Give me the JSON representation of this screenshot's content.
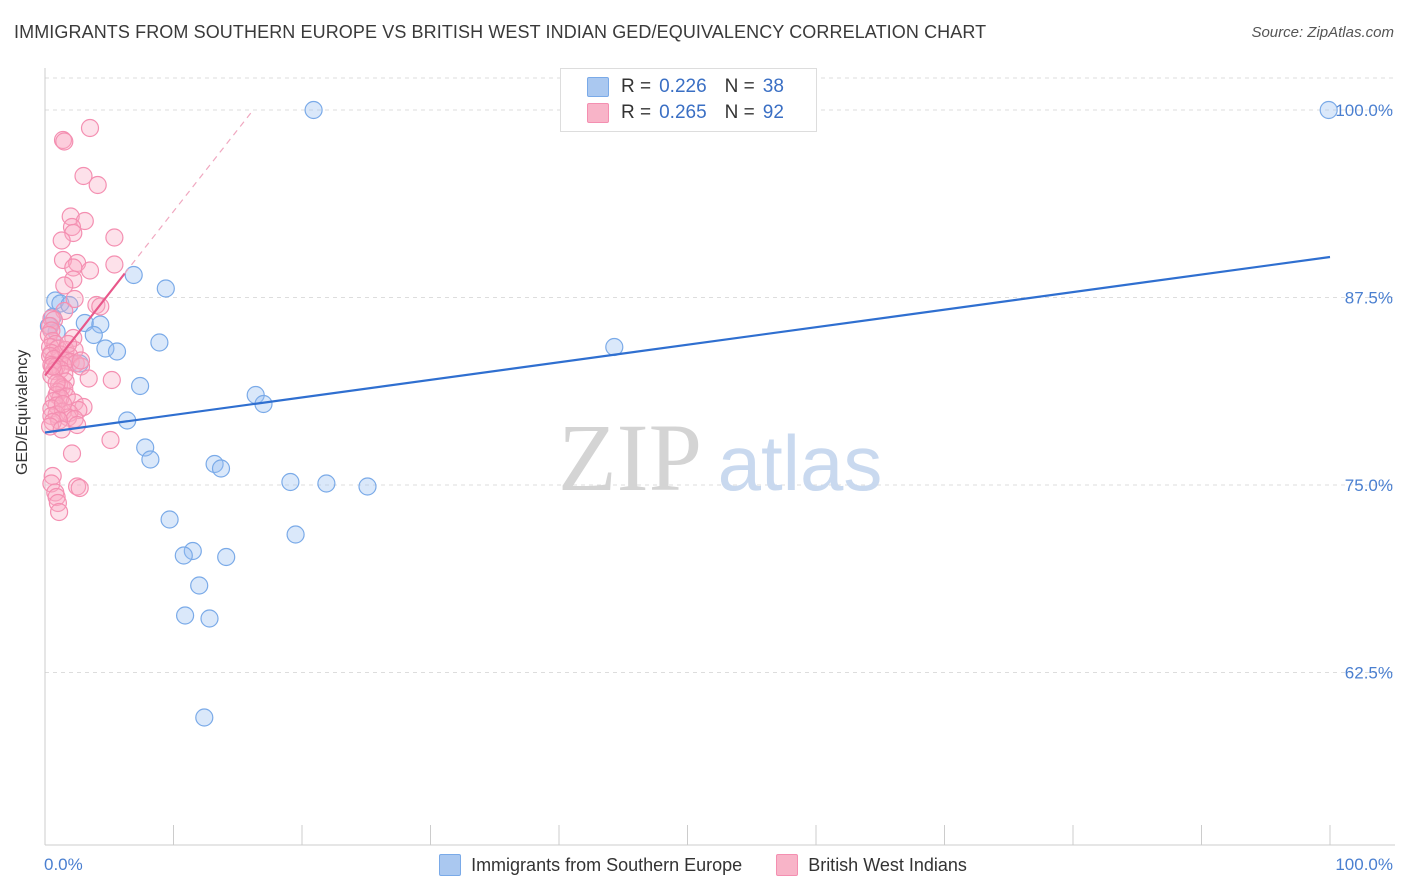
{
  "header": {
    "title": "IMMIGRANTS FROM SOUTHERN EUROPE VS BRITISH WEST INDIAN GED/EQUIVALENCY CORRELATION CHART",
    "source": "Source: ZipAtlas.com"
  },
  "watermark": {
    "zip": "ZIP",
    "atlas": "atlas"
  },
  "legend_top": {
    "rows": [
      {
        "r_label": "R =",
        "r_value": "0.226",
        "n_label": "N =",
        "n_value": "38",
        "color": "#aac8f0"
      },
      {
        "r_label": "R =",
        "r_value": "0.265",
        "n_label": "N =",
        "n_value": "92",
        "color": "#f8b4c8"
      }
    ]
  },
  "legend_bottom": {
    "items": [
      {
        "label": "Immigrants from Southern Europe",
        "color": "#aac8f0"
      },
      {
        "label": "British West Indians",
        "color": "#f8b4c8"
      }
    ]
  },
  "chart_data": {
    "type": "scatter",
    "title": "IMMIGRANTS FROM SOUTHERN EUROPE VS BRITISH WEST INDIAN GED/EQUIVALENCY CORRELATION CHART",
    "xlabel": "",
    "ylabel": "GED/Equivalency",
    "xlim": [
      0,
      100
    ],
    "ylim": [
      51,
      102
    ],
    "x_tick_labels": [
      "0.0%",
      "100.0%"
    ],
    "y_ticks": [
      62.5,
      75.0,
      87.5,
      100.0
    ],
    "y_tick_labels": [
      "62.5%",
      "75.0%",
      "87.5%",
      "100.0%"
    ],
    "grid": true,
    "legend_placement": "top-center",
    "series": [
      {
        "name": "Immigrants from Southern Europe",
        "color": "#7aaae8",
        "line_color": "#2f6fd0",
        "trend": {
          "x": [
            0,
            100
          ],
          "y": [
            78.5,
            90.2
          ]
        },
        "points": [
          [
            20.9,
            100.0
          ],
          [
            99.9,
            100.0
          ],
          [
            0.8,
            87.3
          ],
          [
            6.9,
            89.0
          ],
          [
            9.4,
            88.1
          ],
          [
            1.2,
            87.1
          ],
          [
            1.9,
            87.0
          ],
          [
            0.6,
            86.2
          ],
          [
            3.1,
            85.8
          ],
          [
            4.3,
            85.7
          ],
          [
            0.9,
            85.2
          ],
          [
            3.8,
            85.0
          ],
          [
            8.9,
            84.5
          ],
          [
            4.7,
            84.1
          ],
          [
            5.6,
            83.9
          ],
          [
            2.7,
            83.1
          ],
          [
            44.3,
            84.2
          ],
          [
            7.4,
            81.6
          ],
          [
            16.4,
            81.0
          ],
          [
            17.0,
            80.4
          ],
          [
            6.4,
            79.3
          ],
          [
            7.8,
            77.5
          ],
          [
            8.2,
            76.7
          ],
          [
            13.2,
            76.4
          ],
          [
            13.7,
            76.1
          ],
          [
            19.1,
            75.2
          ],
          [
            21.9,
            75.1
          ],
          [
            25.1,
            74.9
          ],
          [
            9.7,
            72.7
          ],
          [
            19.5,
            71.7
          ],
          [
            11.5,
            70.6
          ],
          [
            10.8,
            70.3
          ],
          [
            14.1,
            70.2
          ],
          [
            12.0,
            68.3
          ],
          [
            10.9,
            66.3
          ],
          [
            12.8,
            66.1
          ],
          [
            12.4,
            59.5
          ],
          [
            0.3,
            85.6
          ]
        ]
      },
      {
        "name": "British West Indians",
        "color": "#f48fb1",
        "line_color": "#e8578a",
        "trend": {
          "x": [
            0,
            6.2
          ],
          "y": [
            82.3,
            89.1
          ]
        },
        "trend_dashed": {
          "x": [
            6.2,
            16.2
          ],
          "y": [
            89.1,
            100.0
          ]
        },
        "points": [
          [
            3.5,
            98.8
          ],
          [
            1.4,
            98.0
          ],
          [
            1.5,
            97.9
          ],
          [
            3.0,
            95.6
          ],
          [
            4.1,
            95.0
          ],
          [
            2.0,
            92.9
          ],
          [
            3.1,
            92.6
          ],
          [
            2.1,
            92.2
          ],
          [
            2.2,
            91.8
          ],
          [
            5.4,
            91.5
          ],
          [
            1.3,
            91.3
          ],
          [
            1.4,
            90.0
          ],
          [
            2.5,
            89.8
          ],
          [
            5.4,
            89.7
          ],
          [
            2.2,
            89.5
          ],
          [
            3.5,
            89.3
          ],
          [
            2.2,
            88.7
          ],
          [
            1.5,
            88.3
          ],
          [
            2.3,
            87.4
          ],
          [
            4.0,
            87.0
          ],
          [
            4.3,
            86.9
          ],
          [
            1.5,
            86.6
          ],
          [
            0.5,
            86.1
          ],
          [
            0.7,
            86.0
          ],
          [
            0.4,
            85.6
          ],
          [
            0.5,
            85.3
          ],
          [
            0.3,
            85.0
          ],
          [
            2.2,
            84.8
          ],
          [
            0.6,
            84.6
          ],
          [
            0.8,
            84.4
          ],
          [
            0.4,
            84.2
          ],
          [
            1.0,
            84.1
          ],
          [
            1.6,
            84.0
          ],
          [
            2.3,
            84.0
          ],
          [
            0.5,
            83.8
          ],
          [
            1.2,
            83.7
          ],
          [
            0.4,
            83.6
          ],
          [
            1.9,
            83.6
          ],
          [
            0.7,
            83.4
          ],
          [
            1.6,
            83.3
          ],
          [
            2.0,
            83.2
          ],
          [
            2.4,
            83.1
          ],
          [
            0.5,
            83.0
          ],
          [
            1.4,
            83.0
          ],
          [
            0.9,
            82.9
          ],
          [
            2.8,
            82.9
          ],
          [
            1.2,
            82.7
          ],
          [
            0.7,
            82.6
          ],
          [
            1.5,
            82.4
          ],
          [
            0.5,
            82.3
          ],
          [
            3.4,
            82.1
          ],
          [
            5.2,
            82.0
          ],
          [
            1.6,
            81.9
          ],
          [
            1.1,
            81.7
          ],
          [
            1.3,
            81.5
          ],
          [
            1.5,
            81.4
          ],
          [
            1.0,
            81.2
          ],
          [
            0.9,
            81.0
          ],
          [
            1.7,
            80.9
          ],
          [
            1.2,
            80.8
          ],
          [
            0.7,
            80.6
          ],
          [
            2.3,
            80.5
          ],
          [
            0.9,
            80.3
          ],
          [
            3.0,
            80.2
          ],
          [
            0.5,
            80.1
          ],
          [
            2.6,
            80.0
          ],
          [
            1.4,
            79.9
          ],
          [
            1.9,
            79.8
          ],
          [
            0.9,
            79.7
          ],
          [
            0.5,
            79.6
          ],
          [
            1.8,
            79.5
          ],
          [
            2.3,
            79.4
          ],
          [
            1.1,
            79.3
          ],
          [
            0.6,
            79.2
          ],
          [
            2.5,
            79.0
          ],
          [
            0.4,
            78.9
          ],
          [
            5.1,
            78.0
          ],
          [
            2.1,
            77.1
          ],
          [
            0.6,
            75.6
          ],
          [
            0.5,
            75.1
          ],
          [
            2.5,
            74.9
          ],
          [
            2.7,
            74.8
          ],
          [
            0.8,
            74.5
          ],
          [
            0.9,
            74.2
          ],
          [
            1.0,
            73.8
          ],
          [
            1.1,
            73.2
          ],
          [
            0.9,
            81.8
          ],
          [
            1.4,
            80.4
          ],
          [
            2.8,
            83.3
          ],
          [
            1.8,
            84.4
          ],
          [
            0.6,
            82.9
          ],
          [
            1.3,
            78.7
          ]
        ]
      }
    ]
  }
}
